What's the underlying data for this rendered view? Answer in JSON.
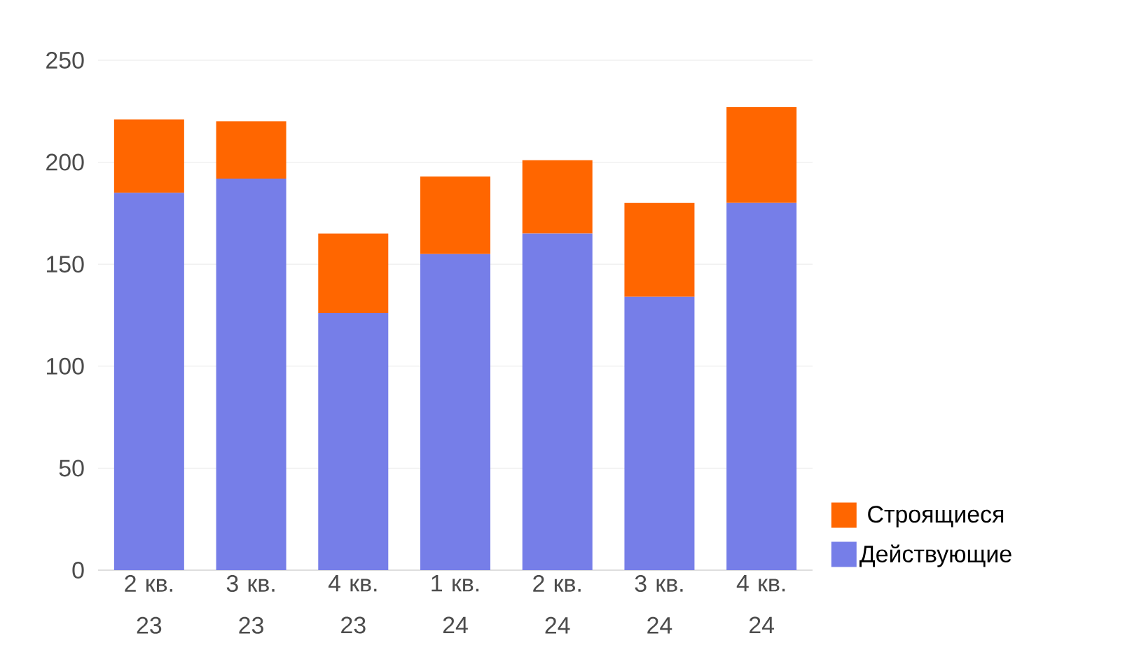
{
  "chart_data": {
    "type": "bar",
    "stacked": true,
    "categories": [
      "2 кв. 23",
      "3 кв. 23",
      "4 кв. 23",
      "1 кв. 24",
      "2 кв. 24",
      "3 кв. 24",
      "4 кв. 24"
    ],
    "series": [
      {
        "name": "Действующие",
        "color": "#767ee8",
        "values": [
          185,
          192,
          126,
          155,
          165,
          134,
          180
        ]
      },
      {
        "name": "Строящиеся",
        "color": "#ff6600",
        "values": [
          36,
          28,
          39,
          38,
          36,
          46,
          47
        ]
      }
    ],
    "ylim": [
      0,
      250
    ],
    "yticks": [
      0,
      50,
      100,
      150,
      200,
      250
    ],
    "grid": "y",
    "legend": "right"
  }
}
